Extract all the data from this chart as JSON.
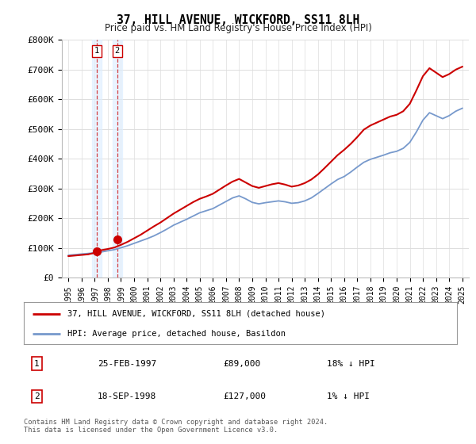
{
  "title": "37, HILL AVENUE, WICKFORD, SS11 8LH",
  "subtitle": "Price paid vs. HM Land Registry's House Price Index (HPI)",
  "xlim": [
    1994.5,
    2025.5
  ],
  "ylim": [
    0,
    800000
  ],
  "yticks": [
    0,
    100000,
    200000,
    300000,
    400000,
    500000,
    600000,
    700000,
    800000
  ],
  "ytick_labels": [
    "£0",
    "£100K",
    "£200K",
    "£300K",
    "£400K",
    "£500K",
    "£600K",
    "£700K",
    "£800K"
  ],
  "xtick_years": [
    1995,
    1996,
    1997,
    1998,
    1999,
    2000,
    2001,
    2002,
    2003,
    2004,
    2005,
    2006,
    2007,
    2008,
    2009,
    2010,
    2011,
    2012,
    2013,
    2014,
    2015,
    2016,
    2017,
    2018,
    2019,
    2020,
    2021,
    2022,
    2023,
    2024,
    2025
  ],
  "transaction_years": [
    1997.15,
    1998.72
  ],
  "transaction_prices": [
    89000,
    127000
  ],
  "transaction_labels": [
    "1",
    "2"
  ],
  "transaction_dates": [
    "25-FEB-1997",
    "18-SEP-1998"
  ],
  "transaction_price_labels": [
    "£89,000",
    "£127,000"
  ],
  "transaction_hpi_labels": [
    "18% ↓ HPI",
    "1% ↓ HPI"
  ],
  "red_line_color": "#cc0000",
  "blue_line_color": "#7799cc",
  "dot_color": "#cc0000",
  "grid_color": "#dddddd",
  "background_color": "#ffffff",
  "legend_line1": "37, HILL AVENUE, WICKFORD, SS11 8LH (detached house)",
  "legend_line2": "HPI: Average price, detached house, Basildon",
  "footer": "Contains HM Land Registry data © Crown copyright and database right 2024.\nThis data is licensed under the Open Government Licence v3.0.",
  "hpi_x": [
    1995,
    1995.5,
    1996,
    1996.5,
    1997,
    1997.5,
    1998,
    1998.5,
    1999,
    1999.5,
    2000,
    2000.5,
    2001,
    2001.5,
    2002,
    2002.5,
    2003,
    2003.5,
    2004,
    2004.5,
    2005,
    2005.5,
    2006,
    2006.5,
    2007,
    2007.5,
    2008,
    2008.5,
    2009,
    2009.5,
    2010,
    2010.5,
    2011,
    2011.5,
    2012,
    2012.5,
    2013,
    2013.5,
    2014,
    2014.5,
    2015,
    2015.5,
    2016,
    2016.5,
    2017,
    2017.5,
    2018,
    2018.5,
    2019,
    2019.5,
    2020,
    2020.5,
    2021,
    2021.5,
    2022,
    2022.5,
    2023,
    2023.5,
    2024,
    2024.5,
    2025
  ],
  "hpi_y": [
    75000,
    77000,
    79000,
    81000,
    83000,
    86000,
    90000,
    94000,
    100000,
    107000,
    115000,
    123000,
    131000,
    140000,
    151000,
    163000,
    176000,
    186000,
    196000,
    207000,
    218000,
    225000,
    232000,
    244000,
    256000,
    268000,
    275000,
    265000,
    253000,
    248000,
    252000,
    255000,
    258000,
    255000,
    250000,
    252000,
    258000,
    268000,
    283000,
    299000,
    315000,
    330000,
    340000,
    355000,
    372000,
    388000,
    398000,
    405000,
    412000,
    420000,
    425000,
    435000,
    455000,
    490000,
    530000,
    555000,
    545000,
    535000,
    545000,
    560000,
    570000
  ],
  "price_line_x": [
    1995,
    1995.5,
    1996,
    1996.5,
    1997,
    1997.5,
    1998,
    1998.5,
    1999,
    1999.5,
    2000,
    2000.5,
    2001,
    2001.5,
    2002,
    2002.5,
    2003,
    2003.5,
    2004,
    2004.5,
    2005,
    2005.5,
    2006,
    2006.5,
    2007,
    2007.5,
    2008,
    2008.5,
    2009,
    2009.5,
    2010,
    2010.5,
    2011,
    2011.5,
    2012,
    2012.5,
    2013,
    2013.5,
    2014,
    2014.5,
    2015,
    2015.5,
    2016,
    2016.5,
    2017,
    2017.5,
    2018,
    2018.5,
    2019,
    2019.5,
    2020,
    2020.5,
    2021,
    2021.5,
    2022,
    2022.5,
    2023,
    2023.5,
    2024,
    2024.5,
    2025
  ],
  "price_line_y": [
    72000,
    74000,
    76000,
    78000,
    83000,
    92000,
    96000,
    101000,
    110000,
    120000,
    132000,
    144000,
    158000,
    172000,
    185000,
    200000,
    215000,
    228000,
    241000,
    254000,
    265000,
    273000,
    282000,
    296000,
    310000,
    323000,
    332000,
    320000,
    308000,
    302000,
    308000,
    314000,
    318000,
    313000,
    306000,
    310000,
    318000,
    330000,
    347000,
    368000,
    390000,
    412000,
    430000,
    450000,
    473000,
    498000,
    512000,
    522000,
    532000,
    542000,
    548000,
    560000,
    585000,
    630000,
    678000,
    705000,
    690000,
    675000,
    685000,
    700000,
    710000
  ]
}
